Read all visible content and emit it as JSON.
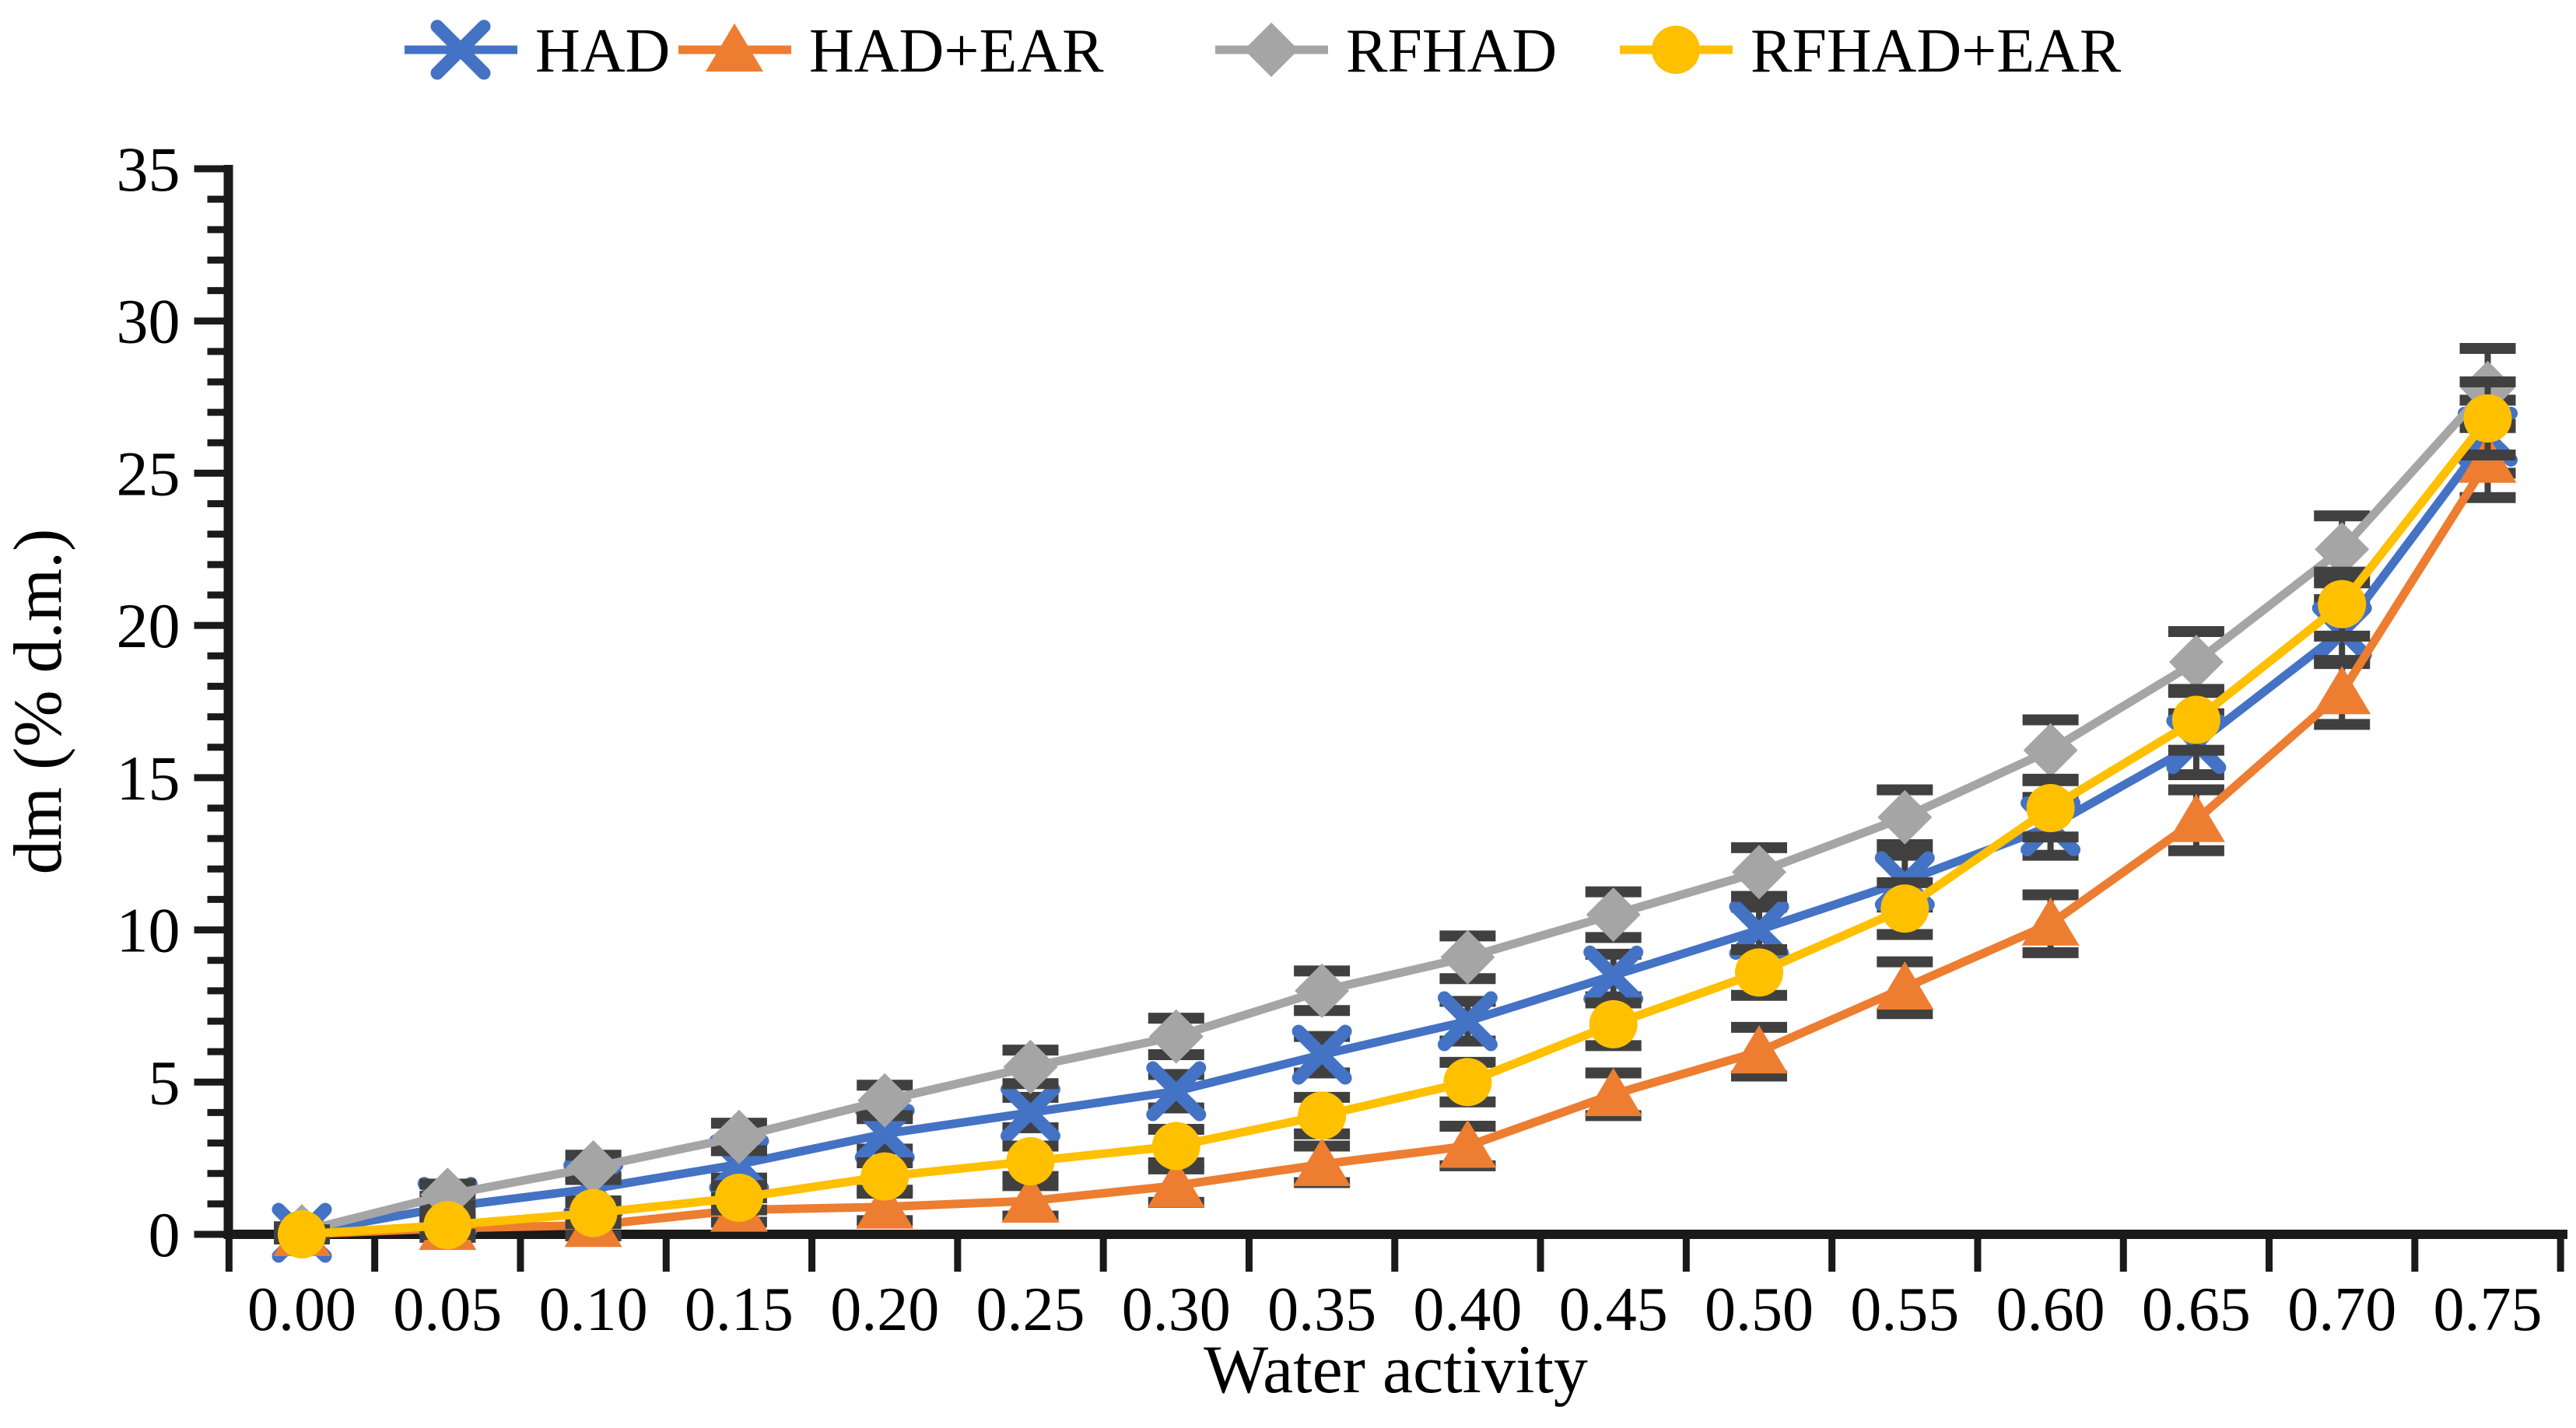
{
  "figure": {
    "background": "#ffffff",
    "text_color": "#000000",
    "axis_color": "#1a1a1a",
    "error_bar_color": "#404040"
  },
  "chart_data": {
    "type": "line",
    "title": "",
    "xlabel": "Water activity",
    "ylabel": "dm  (% d.m.)",
    "categories": [
      "0.00",
      "0.05",
      "0.10",
      "0.15",
      "0.20",
      "0.25",
      "0.30",
      "0.35",
      "0.40",
      "0.45",
      "0.50",
      "0.55",
      "0.60",
      "0.65",
      "0.70",
      "0.75"
    ],
    "x_axis": {
      "min": 0.0,
      "max": 0.75,
      "step": 0.05,
      "tick_style": "between-categories"
    },
    "y_axis": {
      "min": 0,
      "max": 35,
      "major_step": 5,
      "minor_step": 1,
      "tick_labels": [
        "0",
        "5",
        "10",
        "15",
        "20",
        "25",
        "30",
        "35"
      ]
    },
    "grid": false,
    "legend": {
      "position": "top",
      "entries": [
        "HAD",
        "HAD+EAR",
        "RFHAD",
        "RFHAD+EAR"
      ]
    },
    "series": [
      {
        "name": "HAD",
        "color": "#4472C4",
        "marker": "x",
        "values": [
          0.05,
          0.9,
          1.5,
          2.3,
          3.3,
          4.0,
          4.7,
          5.9,
          7.0,
          8.5,
          10.0,
          11.6,
          13.4,
          16.1,
          19.8,
          26.2
        ],
        "errors": [
          0.15,
          0.35,
          0.4,
          0.45,
          0.5,
          0.5,
          0.55,
          0.6,
          0.65,
          0.7,
          0.75,
          0.85,
          0.95,
          1.0,
          1.05,
          1.2
        ]
      },
      {
        "name": "HAD+EAR",
        "color": "#ED7D31",
        "marker": "triangle",
        "values": [
          0.0,
          0.2,
          0.3,
          0.8,
          0.9,
          1.1,
          1.6,
          2.3,
          2.9,
          4.6,
          6.0,
          8.1,
          10.2,
          13.6,
          17.8,
          25.4
        ],
        "errors": [
          0.15,
          0.3,
          0.35,
          0.4,
          0.45,
          0.5,
          0.55,
          0.6,
          0.65,
          0.7,
          0.8,
          0.85,
          0.95,
          1.0,
          1.05,
          1.2
        ]
      },
      {
        "name": "RFHAD",
        "color": "#A5A5A5",
        "marker": "diamond",
        "values": [
          0.1,
          1.3,
          2.2,
          3.2,
          4.4,
          5.5,
          6.5,
          8.0,
          9.1,
          10.5,
          11.9,
          13.7,
          15.9,
          18.8,
          22.5,
          27.8
        ],
        "errors": [
          0.15,
          0.35,
          0.4,
          0.45,
          0.5,
          0.55,
          0.6,
          0.65,
          0.7,
          0.75,
          0.8,
          0.9,
          1.0,
          1.0,
          1.1,
          1.3
        ]
      },
      {
        "name": "RFHAD+EAR",
        "color": "#FFC000",
        "marker": "circle",
        "values": [
          0.0,
          0.3,
          0.7,
          1.2,
          1.9,
          2.4,
          2.9,
          3.9,
          5.0,
          6.9,
          8.6,
          10.7,
          14.0,
          16.9,
          20.7,
          26.8
        ],
        "errors": [
          0.15,
          0.3,
          0.35,
          0.4,
          0.45,
          0.5,
          0.55,
          0.6,
          0.65,
          0.7,
          0.75,
          0.85,
          0.95,
          1.0,
          1.05,
          1.2
        ]
      }
    ]
  }
}
